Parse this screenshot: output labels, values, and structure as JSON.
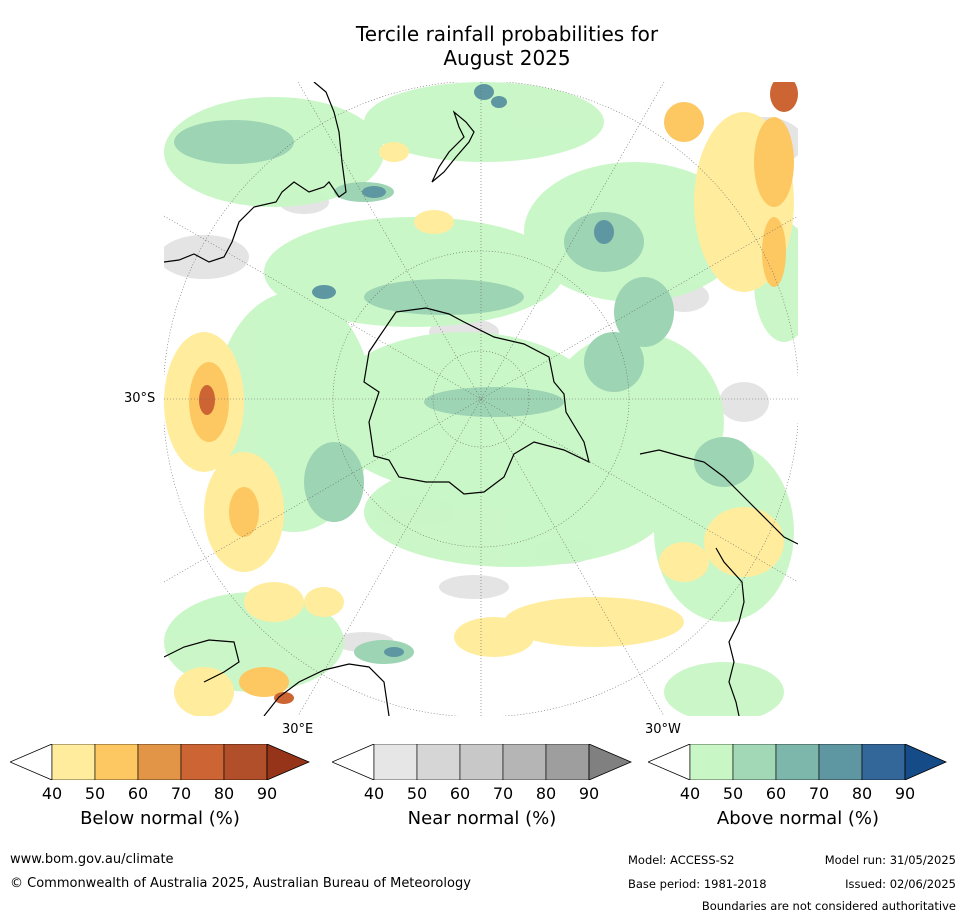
{
  "title": {
    "line1": "Tercile rainfall probabilities for",
    "line2": "August 2025"
  },
  "map": {
    "lat_label": "30°S",
    "lon_label_east": "30°E",
    "lon_label_west": "30°W"
  },
  "colorbars": [
    {
      "title": "Below normal (%)",
      "ticks": [
        "40",
        "50",
        "60",
        "70",
        "80",
        "90"
      ],
      "colors": [
        "#ffffff",
        "#ffec9c",
        "#fdc762",
        "#e29447",
        "#cc6533",
        "#b04f2a",
        "#963419"
      ]
    },
    {
      "title": "Near normal (%)",
      "ticks": [
        "40",
        "50",
        "60",
        "70",
        "80",
        "90"
      ],
      "colors": [
        "#ffffff",
        "#e6e6e6",
        "#d6d6d6",
        "#c8c8c8",
        "#b5b5b5",
        "#9e9e9e",
        "#808080"
      ]
    },
    {
      "title": "Above normal (%)",
      "ticks": [
        "40",
        "50",
        "60",
        "70",
        "80",
        "90"
      ],
      "colors": [
        "#ffffff",
        "#c8f7c5",
        "#a3d8b7",
        "#7db6aa",
        "#5e96a1",
        "#33679a",
        "#154b86"
      ]
    }
  ],
  "footer": {
    "url": "www.bom.gov.au/climate",
    "copyright": "© Commonwealth of Australia 2025, Australian Bureau of Meteorology",
    "model": "Model: ACCESS-S2",
    "base_period": "Base period: 1981-2018",
    "model_run": "Model run: 31/05/2025",
    "issued": "Issued: 02/06/2025",
    "boundaries": "Boundaries are not considered authoritative"
  }
}
